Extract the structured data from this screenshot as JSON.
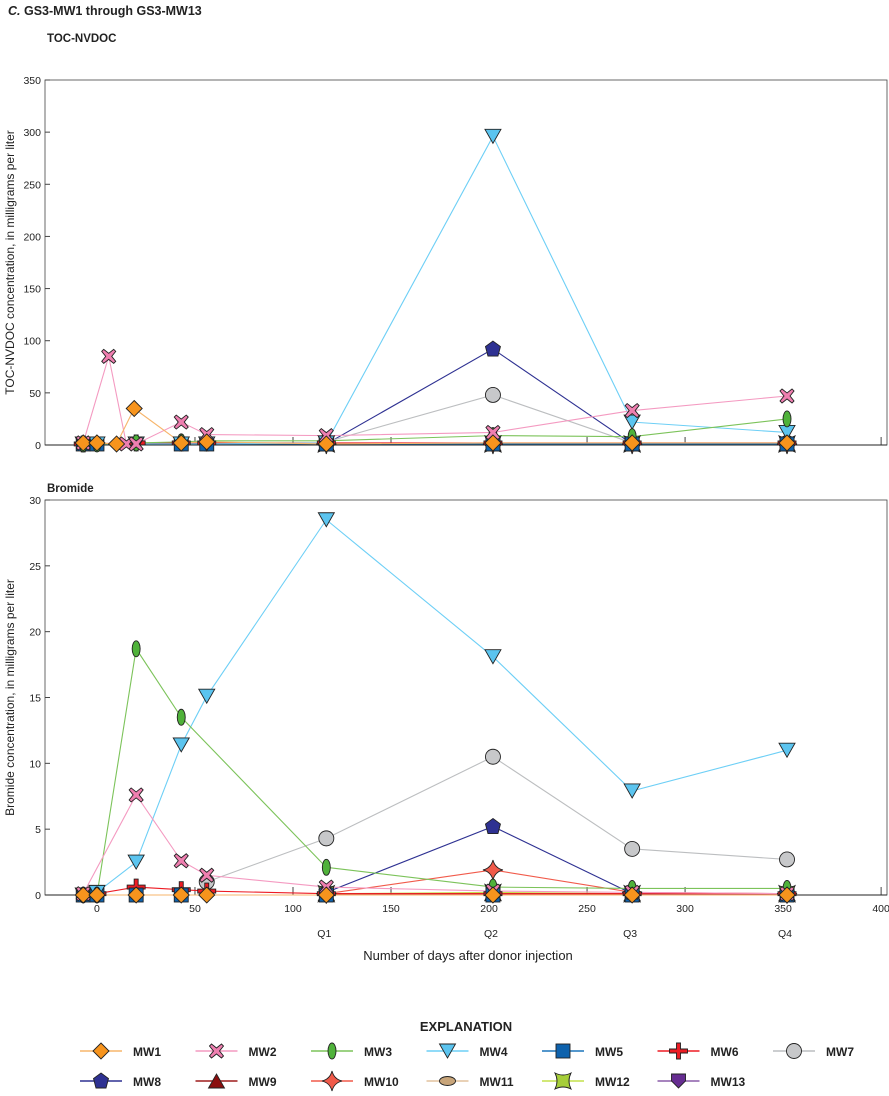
{
  "figure_label": "C.",
  "figure_title": "GS3-MW1 through GS3-MW13",
  "legend_title": "EXPLANATION",
  "colors": {
    "MW1": {
      "line": "#f7b56b",
      "fill": "#f7941d"
    },
    "MW2": {
      "line": "#f49ac1",
      "fill": "#ef7fb0"
    },
    "MW3": {
      "line": "#7cc35a",
      "fill": "#4fb23a"
    },
    "MW4": {
      "line": "#6dcff6",
      "fill": "#5bc4ef"
    },
    "MW5": {
      "line": "#1c75bc",
      "fill": "#0e62ad"
    },
    "MW6": {
      "line": "#ed1c24",
      "fill": "#ed1c24"
    },
    "MW7": {
      "line": "#bcbec0",
      "fill": "#c7c8ca"
    },
    "MW8": {
      "line": "#2e3192",
      "fill": "#2e3192"
    },
    "MW9": {
      "line": "#9e1b1b",
      "fill": "#8b0e0e"
    },
    "MW10": {
      "line": "#f15a4a",
      "fill": "#f05a4a"
    },
    "MW11": {
      "line": "#e2c29d",
      "fill": "#c8a57a"
    },
    "MW12": {
      "line": "#c4e04a",
      "fill": "#a6ce39"
    },
    "MW13": {
      "line": "#8a5ca8",
      "fill": "#662d91"
    }
  },
  "chart_data": [
    {
      "type": "line",
      "title": "TOC-NVDOC",
      "xlabel": "Number of days after donor injection",
      "ylabel": "TOC-NVDOC concentration, in milligrams per liter",
      "xlim": [
        -26.5,
        403
      ],
      "ylim": [
        0,
        350
      ],
      "xticks": [
        0,
        50,
        100,
        150,
        200,
        250,
        300,
        350,
        400
      ],
      "yticks": [
        0,
        50,
        100,
        150,
        200,
        250,
        300,
        350
      ],
      "show_xtick_labels": false,
      "series": [
        {
          "name": "MW1",
          "marker": "diamond",
          "points": [
            [
              -7,
              2
            ],
            [
              0,
              2
            ],
            [
              10,
              1
            ],
            [
              19,
              35
            ],
            [
              43,
              2
            ],
            [
              56,
              3
            ],
            [
              117,
              1
            ],
            [
              202,
              2
            ],
            [
              273,
              2
            ],
            [
              352,
              2
            ]
          ]
        },
        {
          "name": "MW2",
          "marker": "x",
          "points": [
            [
              -7,
              2
            ],
            [
              6,
              85
            ],
            [
              15,
              1
            ],
            [
              20,
              1
            ],
            [
              43,
              22
            ],
            [
              56,
              10
            ],
            [
              117,
              9
            ],
            [
              202,
              12
            ],
            [
              273,
              33
            ],
            [
              352,
              47
            ]
          ]
        },
        {
          "name": "MW3",
          "marker": "ellipse",
          "points": [
            [
              -7,
              1
            ],
            [
              0,
              1
            ],
            [
              20,
              2
            ],
            [
              43,
              3
            ],
            [
              56,
              4
            ],
            [
              117,
              4
            ],
            [
              202,
              9
            ],
            [
              273,
              8
            ],
            [
              352,
              25
            ]
          ]
        },
        {
          "name": "MW4",
          "marker": "triangle-down",
          "points": [
            [
              -7,
              1
            ],
            [
              0,
              1
            ],
            [
              20,
              1
            ],
            [
              43,
              1
            ],
            [
              56,
              1
            ],
            [
              117,
              2
            ],
            [
              202,
              296
            ],
            [
              273,
              22
            ],
            [
              352,
              12
            ]
          ]
        },
        {
          "name": "MW5",
          "marker": "square",
          "points": [
            [
              -7,
              1
            ],
            [
              0,
              1
            ],
            [
              43,
              1
            ],
            [
              56,
              1
            ],
            [
              117,
              1
            ],
            [
              202,
              1
            ],
            [
              273,
              1
            ],
            [
              352,
              1
            ]
          ]
        },
        {
          "name": "MW6",
          "marker": "cross",
          "points": [
            [
              -7,
              1
            ],
            [
              20,
              2
            ],
            [
              43,
              2
            ],
            [
              56,
              2
            ],
            [
              117,
              2
            ],
            [
              202,
              2
            ],
            [
              273,
              2
            ],
            [
              352,
              2
            ]
          ]
        },
        {
          "name": "MW7",
          "marker": "circle",
          "points": [
            [
              117,
              3
            ],
            [
              202,
              48
            ],
            [
              273,
              2
            ],
            [
              352,
              2
            ]
          ]
        },
        {
          "name": "MW8",
          "marker": "pentagon",
          "points": [
            [
              117,
              1
            ],
            [
              202,
              92
            ],
            [
              273,
              1
            ],
            [
              352,
              1
            ]
          ]
        },
        {
          "name": "MW9",
          "marker": "triangle-up",
          "points": [
            [
              117,
              1
            ],
            [
              202,
              1
            ],
            [
              273,
              1
            ],
            [
              352,
              1
            ]
          ]
        },
        {
          "name": "MW10",
          "marker": "star4",
          "points": [
            [
              117,
              1
            ],
            [
              202,
              1
            ],
            [
              273,
              1
            ],
            [
              352,
              1
            ]
          ]
        },
        {
          "name": "MW11",
          "marker": "hellipse",
          "points": [
            [
              117,
              1
            ],
            [
              202,
              1
            ],
            [
              273,
              1
            ],
            [
              352,
              1
            ]
          ]
        },
        {
          "name": "MW12",
          "marker": "bowtie",
          "points": [
            [
              117,
              1
            ],
            [
              202,
              1
            ],
            [
              273,
              1
            ],
            [
              352,
              1
            ]
          ]
        },
        {
          "name": "MW13",
          "marker": "shield",
          "points": [
            [
              117,
              1
            ],
            [
              202,
              1
            ],
            [
              273,
              1
            ],
            [
              352,
              1
            ]
          ]
        }
      ]
    },
    {
      "type": "line",
      "title": "Bromide",
      "xlabel": "Number of days after donor injection",
      "ylabel": "Bromide concentration, in milligrams per liter",
      "xlim": [
        -26.5,
        403
      ],
      "ylim": [
        0,
        30
      ],
      "xticks": [
        0,
        50,
        100,
        150,
        200,
        250,
        300,
        350,
        400
      ],
      "yticks": [
        0,
        5,
        10,
        15,
        20,
        25,
        30
      ],
      "quarter_labels": [
        {
          "label": "Q1",
          "day": 117
        },
        {
          "label": "Q2",
          "day": 202
        },
        {
          "label": "Q3",
          "day": 273
        },
        {
          "label": "Q4",
          "day": 352
        }
      ],
      "series": [
        {
          "name": "MW1",
          "marker": "diamond",
          "points": [
            [
              -7,
              0
            ],
            [
              0,
              0
            ],
            [
              20,
              0
            ],
            [
              43,
              0
            ],
            [
              56,
              0
            ],
            [
              117,
              0
            ],
            [
              202,
              0
            ],
            [
              273,
              0
            ],
            [
              352,
              0
            ]
          ]
        },
        {
          "name": "MW2",
          "marker": "x",
          "points": [
            [
              -7,
              0.1
            ],
            [
              20,
              7.6
            ],
            [
              43,
              2.6
            ],
            [
              56,
              1.5
            ],
            [
              117,
              0.6
            ],
            [
              202,
              0.3
            ],
            [
              273,
              0.2
            ],
            [
              352,
              0.1
            ]
          ]
        },
        {
          "name": "MW3",
          "marker": "ellipse",
          "points": [
            [
              -7,
              0
            ],
            [
              0,
              0
            ],
            [
              20,
              18.7
            ],
            [
              43,
              13.5
            ],
            [
              117,
              2.1
            ],
            [
              202,
              0.6
            ],
            [
              273,
              0.5
            ],
            [
              352,
              0.5
            ]
          ]
        },
        {
          "name": "MW4",
          "marker": "triangle-down",
          "points": [
            [
              -7,
              0
            ],
            [
              0,
              0.2
            ],
            [
              20,
              2.5
            ],
            [
              43,
              11.4
            ],
            [
              56,
              15.1
            ],
            [
              117,
              28.5
            ],
            [
              202,
              18.1
            ],
            [
              273,
              7.9
            ],
            [
              352,
              11
            ]
          ]
        },
        {
          "name": "MW5",
          "marker": "square",
          "points": [
            [
              -7,
              0
            ],
            [
              0,
              0
            ],
            [
              20,
              0
            ],
            [
              43,
              0
            ],
            [
              117,
              0
            ],
            [
              202,
              0
            ],
            [
              273,
              0
            ],
            [
              352,
              0
            ]
          ]
        },
        {
          "name": "MW6",
          "marker": "cross",
          "points": [
            [
              0,
              0.1
            ],
            [
              20,
              0.6
            ],
            [
              43,
              0.4
            ],
            [
              56,
              0.3
            ],
            [
              117,
              0.1
            ],
            [
              202,
              0.1
            ],
            [
              273,
              0.1
            ],
            [
              352,
              0.1
            ]
          ]
        },
        {
          "name": "MW7",
          "marker": "circle",
          "points": [
            [
              56,
              1
            ],
            [
              117,
              4.3
            ],
            [
              202,
              10.5
            ],
            [
              273,
              3.5
            ],
            [
              352,
              2.7
            ]
          ]
        },
        {
          "name": "MW8",
          "marker": "pentagon",
          "points": [
            [
              117,
              0.2
            ],
            [
              202,
              5.2
            ],
            [
              273,
              0.1
            ],
            [
              352,
              0.1
            ]
          ]
        },
        {
          "name": "MW9",
          "marker": "triangle-up",
          "points": [
            [
              117,
              0.1
            ],
            [
              202,
              0.1
            ],
            [
              273,
              0.1
            ],
            [
              352,
              0.1
            ]
          ]
        },
        {
          "name": "MW10",
          "marker": "star4",
          "points": [
            [
              117,
              0.1
            ],
            [
              202,
              1.9
            ],
            [
              273,
              0.2
            ],
            [
              352,
              0.1
            ]
          ]
        },
        {
          "name": "MW11",
          "marker": "hellipse",
          "points": [
            [
              117,
              0.1
            ],
            [
              202,
              0.1
            ],
            [
              273,
              0.1
            ],
            [
              352,
              0.1
            ]
          ]
        },
        {
          "name": "MW12",
          "marker": "bowtie",
          "points": [
            [
              117,
              0.1
            ],
            [
              202,
              0.2
            ],
            [
              273,
              0.1
            ],
            [
              352,
              0.1
            ]
          ]
        },
        {
          "name": "MW13",
          "marker": "shield",
          "points": [
            [
              117,
              0.1
            ],
            [
              202,
              0.1
            ],
            [
              273,
              0.1
            ],
            [
              352,
              0.1
            ]
          ]
        }
      ]
    }
  ]
}
